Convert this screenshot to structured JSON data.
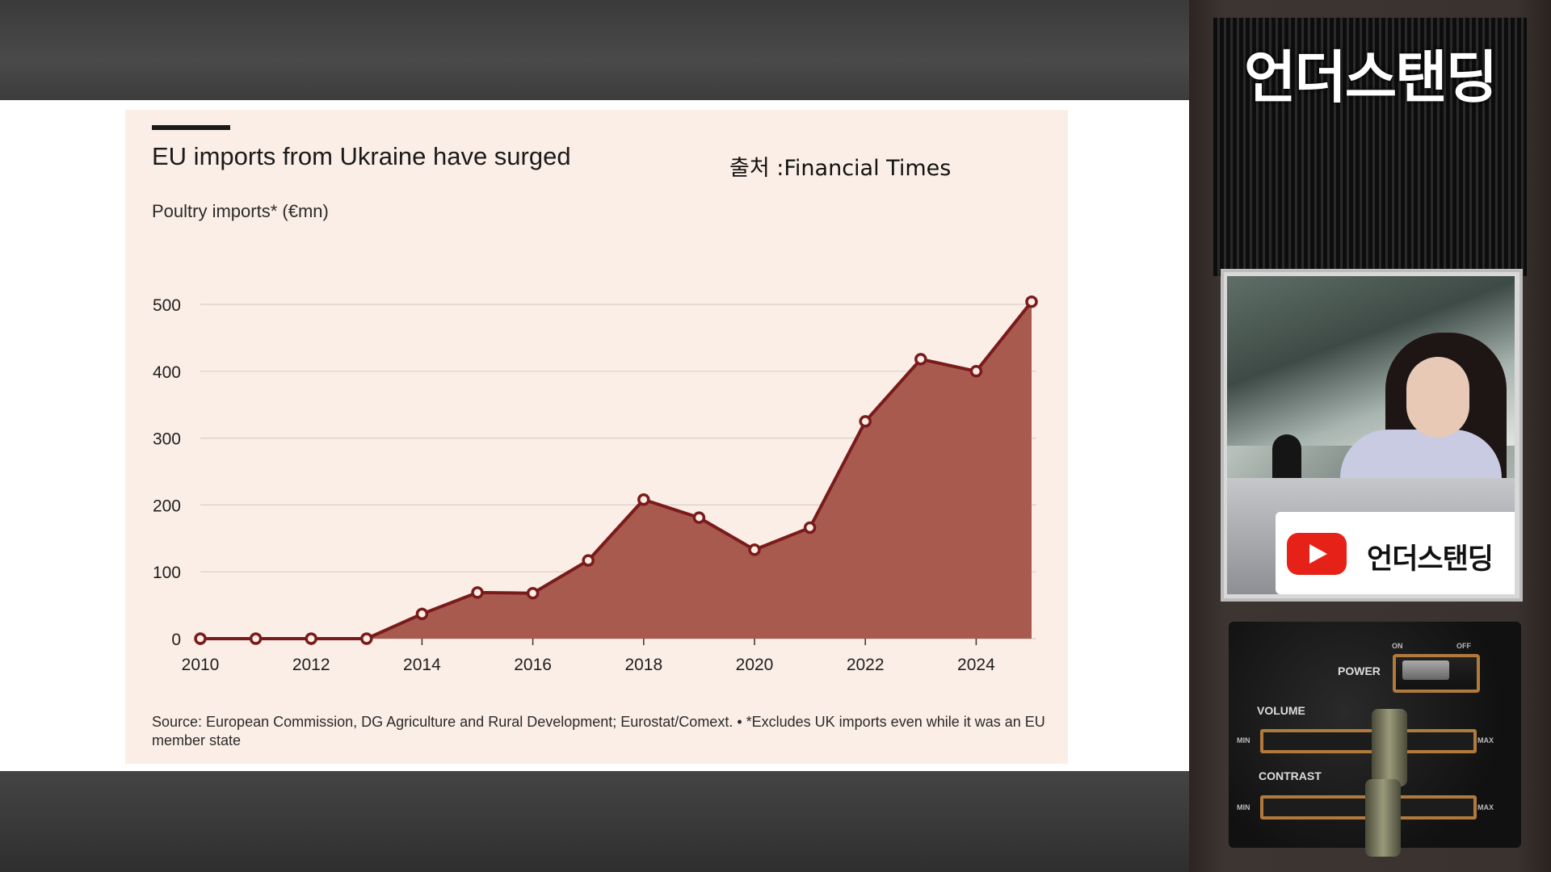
{
  "chart_title": "EU imports from Ukraine have surged",
  "source_credit": "출처 :Financial Times",
  "subtitle": "Poultry imports* (€mn)",
  "footnote": "Source: European Commission, DG Agriculture and Rural Development; Eurostat/Comext. • *Excludes UK imports even while it was an EU member state",
  "colors": {
    "area_fill": "#a85a4f",
    "line": "#7a1b1b",
    "card_bg": "#fbeee6",
    "gridline": "#d9cfc9"
  },
  "chart_data": {
    "type": "area",
    "title": "EU imports from Ukraine have surged",
    "ylabel": "Poultry imports* (€mn)",
    "xlabel": "",
    "x": [
      2010,
      2011,
      2012,
      2013,
      2014,
      2015,
      2016,
      2017,
      2018,
      2019,
      2020,
      2021,
      2022,
      2023,
      2024,
      2025
    ],
    "values": [
      0,
      0,
      0,
      0,
      37,
      69,
      68,
      117,
      208,
      181,
      133,
      166,
      325,
      418,
      400,
      504
    ],
    "ylim": [
      0,
      500
    ],
    "xlim": [
      2010,
      2025
    ],
    "yticks": [
      0,
      100,
      200,
      300,
      400,
      500
    ],
    "xticks": [
      2010,
      2012,
      2014,
      2016,
      2018,
      2020,
      2022,
      2024
    ],
    "grid": true,
    "markers": true
  },
  "sidebar": {
    "channel_name": "언더스탠딩",
    "lower_third_text": "언더스탠딩",
    "youtube_icon": "youtube-play-icon",
    "controls": {
      "power_label": "POWER",
      "on_label": "ON",
      "off_label": "OFF",
      "volume_label": "VOLUME",
      "contrast_label": "CONTRAST",
      "min_label": "MIN",
      "max_label": "MAX"
    }
  }
}
